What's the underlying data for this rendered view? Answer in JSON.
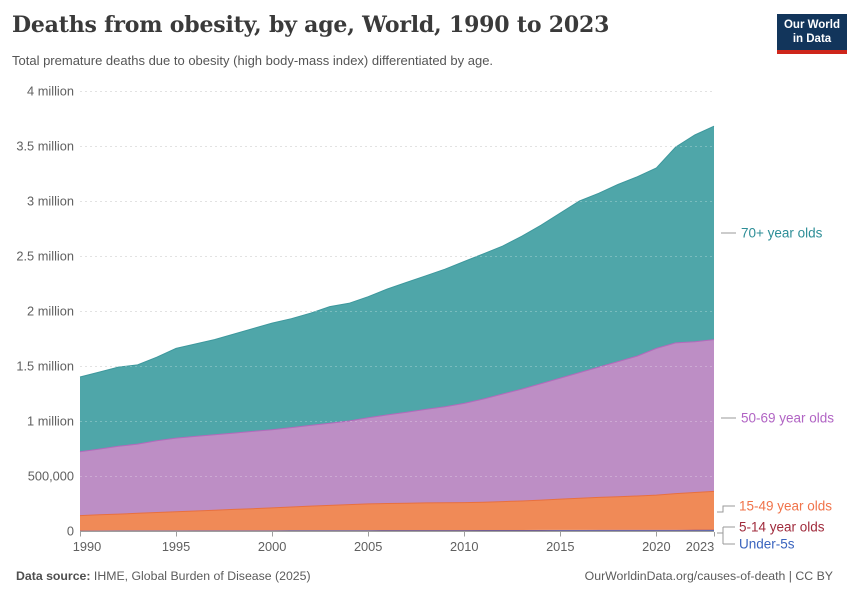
{
  "header": {
    "title": "Deaths from obesity, by age, World, 1990 to 2023",
    "subtitle": "Total premature deaths due to obesity (high body-mass index) differentiated by age.",
    "logo": {
      "line1": "Our World",
      "line2": "in Data",
      "bg_color": "#12355B",
      "accent_color": "#CE261B"
    }
  },
  "chart_data": {
    "type": "area",
    "stacked": true,
    "title": "Deaths from obesity, by age, World, 1990 to 2023",
    "xlabel": "",
    "ylabel": "",
    "grid": "horizontal-dashed",
    "legend_position": "right",
    "xlim": [
      1990,
      2023
    ],
    "ylim": [
      0,
      4000000
    ],
    "x": [
      1990,
      1991,
      1992,
      1993,
      1994,
      1995,
      1996,
      1997,
      1998,
      1999,
      2000,
      2001,
      2002,
      2003,
      2004,
      2005,
      2006,
      2007,
      2008,
      2009,
      2010,
      2011,
      2012,
      2013,
      2014,
      2015,
      2016,
      2017,
      2018,
      2019,
      2020,
      2021,
      2022,
      2023
    ],
    "x_ticks": [
      1990,
      1995,
      2000,
      2005,
      2010,
      2015,
      2020,
      2023
    ],
    "y_ticks": [
      {
        "value": 0,
        "label": "0"
      },
      {
        "value": 500000,
        "label": "500,000"
      },
      {
        "value": 1000000,
        "label": "1 million"
      },
      {
        "value": 1500000,
        "label": "1.5 million"
      },
      {
        "value": 2000000,
        "label": "2 million"
      },
      {
        "value": 2500000,
        "label": "2.5 million"
      },
      {
        "value": 3000000,
        "label": "3 million"
      },
      {
        "value": 3500000,
        "label": "3.5 million"
      },
      {
        "value": 4000000,
        "label": "4 million"
      }
    ],
    "series": [
      {
        "name": "Under-5s",
        "color": "#3A64BE",
        "stroke": "#3A64BE",
        "text_color": "#3A64BE",
        "values": [
          3000,
          3100,
          3200,
          3300,
          3400,
          3500,
          3600,
          3700,
          3800,
          3900,
          4000,
          4100,
          4200,
          4300,
          4400,
          4500,
          4600,
          4700,
          4800,
          4900,
          5000,
          5200,
          5400,
          5600,
          5800,
          6000,
          6200,
          6400,
          6600,
          6800,
          7000,
          7300,
          7600,
          8000
        ]
      },
      {
        "name": "5-14 year olds",
        "color": "#A02B3C",
        "stroke": "#A02B3C",
        "text_color": "#A02B3C",
        "values": [
          2000,
          2060,
          2120,
          2180,
          2240,
          2300,
          2360,
          2420,
          2480,
          2540,
          2600,
          2700,
          2800,
          2900,
          3000,
          3100,
          3200,
          3300,
          3400,
          3500,
          3600,
          3700,
          3800,
          3900,
          4000,
          4100,
          4200,
          4300,
          4400,
          4500,
          4600,
          4700,
          4800,
          5000
        ]
      },
      {
        "name": "15-49 year olds",
        "color": "#F08A57",
        "stroke": "#E8703F",
        "text_color": "#F0734A",
        "values": [
          135000,
          141800,
          148700,
          155500,
          162400,
          169200,
          176000,
          182900,
          189700,
          196600,
          203400,
          211200,
          219000,
          225800,
          232600,
          238400,
          242200,
          245000,
          246800,
          247600,
          249400,
          253100,
          257800,
          263500,
          271200,
          279900,
          286600,
          294300,
          301000,
          306700,
          314400,
          328000,
          337600,
          347000
        ]
      },
      {
        "name": "50-69 year olds",
        "color": "#BD8EC5",
        "stroke": "#B36ABB",
        "text_color": "#B164C4",
        "values": [
          580000,
          598000,
          616000,
          629000,
          652000,
          670000,
          678000,
          686000,
          694000,
          702000,
          710000,
          722000,
          734000,
          747000,
          760000,
          784000,
          805000,
          827000,
          850000,
          874000,
          902000,
          938000,
          978000,
          1017000,
          1059000,
          1100000,
          1143000,
          1185000,
          1228000,
          1272000,
          1334000,
          1370000,
          1370000,
          1380000
        ]
      },
      {
        "name": "70+ year olds",
        "color": "#4FA6A9",
        "stroke": "#3E989D",
        "text_color": "#2D8E97",
        "values": [
          680000,
          700000,
          720000,
          720000,
          760000,
          815000,
          840000,
          865000,
          900000,
          935000,
          970000,
          990000,
          1020000,
          1060000,
          1070000,
          1100000,
          1145000,
          1180000,
          1215000,
          1250000,
          1290000,
          1320000,
          1345000,
          1390000,
          1440000,
          1500000,
          1560000,
          1580000,
          1610000,
          1630000,
          1640000,
          1780000,
          1880000,
          1940000
        ]
      }
    ]
  },
  "footer": {
    "source_label": "Data source:",
    "source_text": " IHME, Global Burden of Disease (2025)",
    "license_text": "OurWorldinData.org/causes-of-death | CC BY"
  }
}
